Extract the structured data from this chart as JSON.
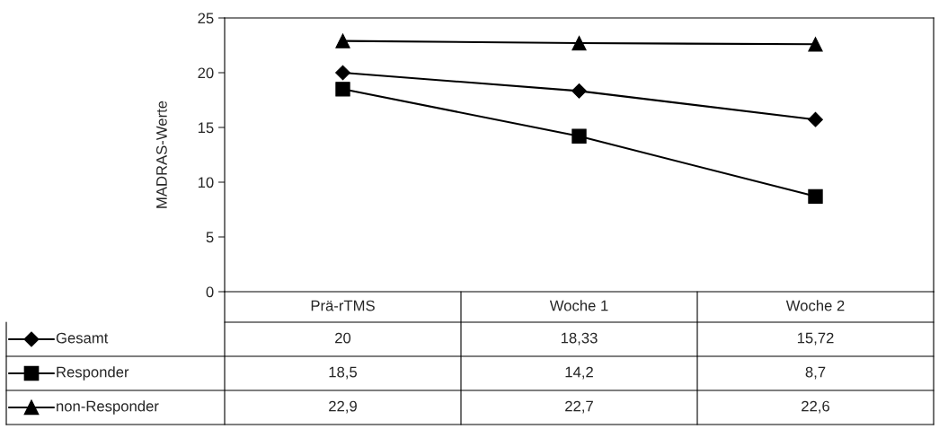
{
  "chart_data": {
    "type": "line",
    "ylabel": "MADRAS-Werte",
    "categories": [
      "Prä-rTMS",
      "Woche 1",
      "Woche 2"
    ],
    "series": [
      {
        "name": "Gesamt",
        "color": "#000000",
        "marker": "diamond",
        "values": [
          20,
          18.33,
          15.72
        ],
        "value_labels": [
          "20",
          "18,33",
          "15,72"
        ]
      },
      {
        "name": "Responder",
        "color": "#000000",
        "marker": "square",
        "values": [
          18.5,
          14.2,
          8.7
        ],
        "value_labels": [
          "18,5",
          "14,2",
          "8,7"
        ]
      },
      {
        "name": "non-Responder",
        "color": "#000000",
        "marker": "triangle",
        "values": [
          22.9,
          22.7,
          22.6
        ],
        "value_labels": [
          "22,9",
          "22,7",
          "22,6"
        ]
      }
    ],
    "ylim": [
      0,
      25
    ],
    "yticks": [
      0,
      5,
      10,
      15,
      20,
      25
    ],
    "grid": false,
    "legend": "bottom left",
    "line_style": "solid"
  }
}
